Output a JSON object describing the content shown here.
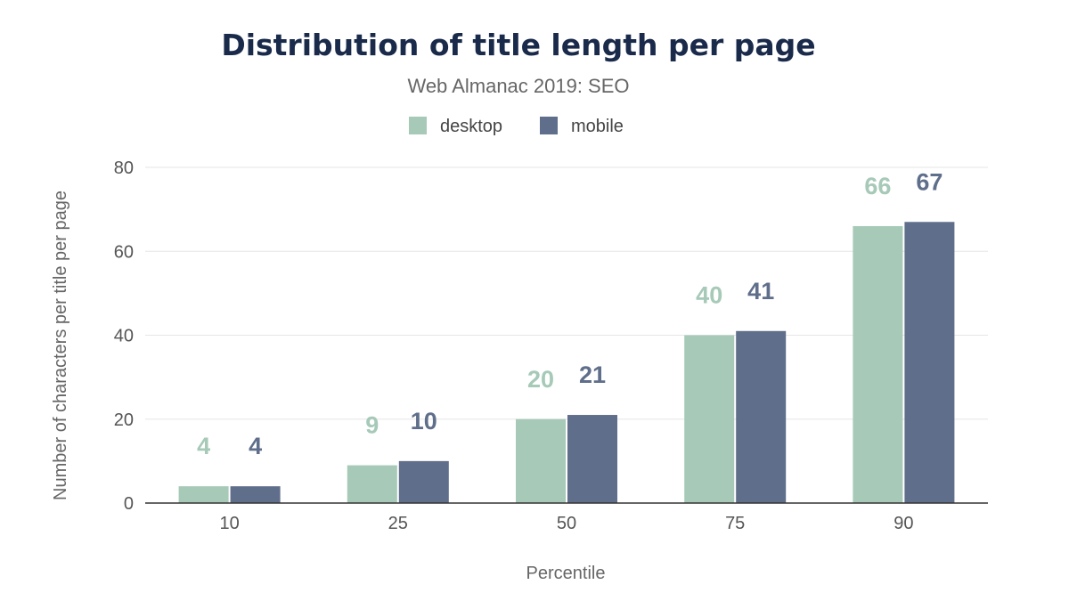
{
  "chart_data": {
    "type": "bar",
    "title": "Distribution of title length per page",
    "subtitle": "Web Almanac 2019: SEO",
    "xlabel": "Percentile",
    "ylabel": "Number of characters per title per page",
    "categories": [
      "10",
      "25",
      "50",
      "75",
      "90"
    ],
    "series": [
      {
        "name": "desktop",
        "color": "#a6c9b8",
        "values": [
          4,
          9,
          20,
          40,
          66
        ]
      },
      {
        "name": "mobile",
        "color": "#5f6e8a",
        "values": [
          4,
          10,
          21,
          41,
          67
        ]
      }
    ],
    "ylim": [
      0,
      80
    ],
    "yticks": [
      0,
      20,
      40,
      60,
      80
    ],
    "grid": true,
    "legend_position": "top-center",
    "data_labels": true
  }
}
